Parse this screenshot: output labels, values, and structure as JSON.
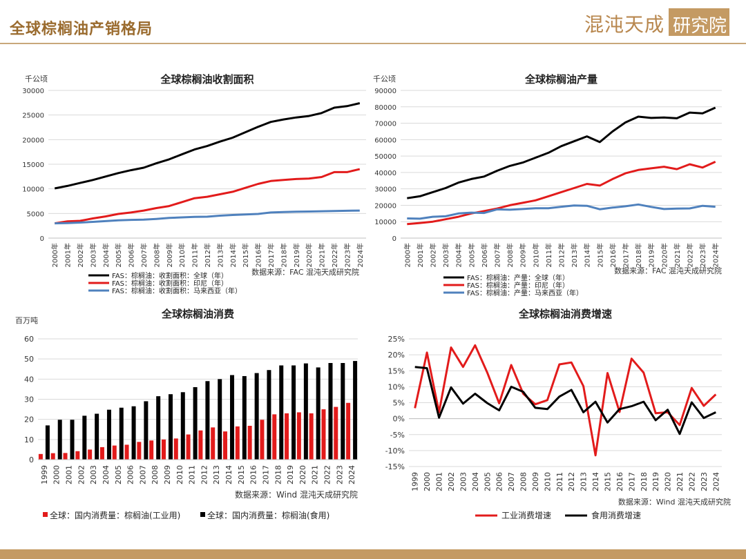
{
  "page": {
    "title": "全球棕榈油产销格局"
  },
  "logo": {
    "text_main": "混沌天成",
    "text_box": "研究院"
  },
  "colors": {
    "black": "#000000",
    "red": "#e21b1b",
    "blue": "#4f81bd",
    "brand": "#c49a63",
    "title_brown": "#9a6b2e"
  },
  "chart_data": [
    {
      "id": "area",
      "type": "line",
      "title": "全球棕榈油收割面积",
      "unit": "千公顷",
      "source": "数据来源：FAC  混沌天成研究院",
      "categories": [
        "2000年",
        "2001年",
        "2002年",
        "2003年",
        "2004年",
        "2005年",
        "2006年",
        "2007年",
        "2008年",
        "2009年",
        "2010年",
        "2011年",
        "2012年",
        "2013年",
        "2014年",
        "2015年",
        "2016年",
        "2017年",
        "2018年",
        "2019年",
        "2020年",
        "2021年",
        "2022年",
        "2023年",
        "2024年"
      ],
      "ylim": [
        0,
        30000
      ],
      "yticks": [
        0,
        5000,
        10000,
        15000,
        20000,
        25000,
        30000
      ],
      "legend_position": "bottom",
      "series": [
        {
          "name": "FAS：棕榈油：收割面积：全球（年）",
          "color": "#000000",
          "values": [
            10100,
            10600,
            11200,
            11800,
            12500,
            13200,
            13800,
            14300,
            15200,
            16000,
            17000,
            18000,
            18700,
            19600,
            20400,
            21500,
            22600,
            23600,
            24100,
            24500,
            24800,
            25400,
            26500,
            26800,
            27400
          ]
        },
        {
          "name": "FAS：棕榈油：收割面积：印尼（年）",
          "color": "#e21b1b",
          "values": [
            3000,
            3400,
            3500,
            4000,
            4400,
            4900,
            5200,
            5600,
            6100,
            6500,
            7300,
            8100,
            8400,
            8900,
            9400,
            10200,
            11000,
            11600,
            11800,
            12000,
            12100,
            12400,
            13400,
            13400,
            14000
          ]
        },
        {
          "name": "FAS：棕榈油：收割面积：马来西亚（年）",
          "color": "#4f81bd",
          "values": [
            3000,
            3050,
            3150,
            3300,
            3450,
            3600,
            3700,
            3750,
            3900,
            4100,
            4200,
            4300,
            4350,
            4550,
            4700,
            4800,
            4900,
            5200,
            5300,
            5350,
            5400,
            5450,
            5500,
            5550,
            5600
          ]
        }
      ]
    },
    {
      "id": "prod",
      "type": "line",
      "title": "全球棕榈油产量",
      "unit": "千公顷",
      "source": "数据来源：FAC  混沌天成研究院",
      "categories": [
        "2000年",
        "2001年",
        "2002年",
        "2003年",
        "2004年",
        "2005年",
        "2006年",
        "2007年",
        "2008年",
        "2009年",
        "2010年",
        "2011年",
        "2012年",
        "2013年",
        "2014年",
        "2015年",
        "2016年",
        "2017年",
        "2018年",
        "2019年",
        "2020年",
        "2021年",
        "2022年",
        "2023年",
        "2024年"
      ],
      "ylim": [
        0,
        90000
      ],
      "yticks": [
        0,
        10000,
        20000,
        30000,
        40000,
        50000,
        60000,
        70000,
        80000,
        90000
      ],
      "legend_position": "bottom",
      "series": [
        {
          "name": "FAS：棕榈油：产量：全球（年）",
          "color": "#000000",
          "values": [
            24300,
            25500,
            28000,
            30500,
            33800,
            36000,
            37500,
            41000,
            44000,
            46000,
            49000,
            52000,
            56000,
            59000,
            62000,
            58500,
            65000,
            70500,
            74000,
            73200,
            73500,
            73000,
            76500,
            76000,
            79500
          ]
        },
        {
          "name": "FAS：棕榈油：产量：印尼（年）",
          "color": "#e21b1b",
          "values": [
            8500,
            9200,
            10000,
            11500,
            13000,
            15000,
            16500,
            18000,
            20000,
            21500,
            23000,
            25500,
            28000,
            30500,
            33000,
            32000,
            36000,
            39500,
            41500,
            42500,
            43500,
            42000,
            45000,
            43000,
            46500
          ]
        },
        {
          "name": "FAS：棕榈油：产量：马来西亚（年）",
          "color": "#4f81bd",
          "values": [
            12000,
            11800,
            13000,
            13300,
            15000,
            15500,
            15300,
            17500,
            17300,
            17700,
            18200,
            18200,
            19100,
            19900,
            19700,
            17600,
            18600,
            19400,
            20500,
            19000,
            17700,
            18000,
            18100,
            19700,
            19100
          ]
        }
      ]
    },
    {
      "id": "cons",
      "type": "bar",
      "title": "全球棕榈油消费",
      "unit": "百万吨",
      "source": "数据来源：Wind  混沌天成研究院",
      "categories": [
        "1999",
        "2000",
        "2001",
        "2002",
        "2003",
        "2004",
        "2005",
        "2006",
        "2007",
        "2008",
        "2009",
        "2010",
        "2011",
        "2012",
        "2013",
        "2014",
        "2015",
        "2016",
        "2017",
        "2018",
        "2019",
        "2020",
        "2021",
        "2022",
        "2023",
        "2024"
      ],
      "ylim": [
        0,
        60
      ],
      "yticks": [
        0,
        10,
        20,
        30,
        40,
        50,
        60
      ],
      "legend_position": "bottom",
      "series": [
        {
          "name": "全球：国内消费量：棕榈油(工业用)",
          "color": "#e21b1b",
          "values": [
            2.8,
            3.2,
            3.3,
            4.2,
            5.0,
            6.2,
            7.0,
            7.4,
            8.8,
            9.5,
            10.0,
            10.5,
            12.5,
            14.5,
            16.0,
            14.0,
            16.5,
            16.8,
            19.8,
            22.5,
            23.0,
            23.5,
            23.0,
            25.0,
            26.2,
            28.2
          ]
        },
        {
          "name": "全球：国内消费量：棕榈油(食用)",
          "color": "#000000",
          "values": [
            17.0,
            19.8,
            19.8,
            21.8,
            22.8,
            24.8,
            25.8,
            26.5,
            29.0,
            31.5,
            32.5,
            33.5,
            36.0,
            39.0,
            40.0,
            42.0,
            41.5,
            43.0,
            44.5,
            46.8,
            46.8,
            47.8,
            45.8,
            48.0,
            48.0,
            49.0
          ]
        }
      ]
    },
    {
      "id": "growth",
      "type": "line",
      "title": "全球棕榈油消费增速",
      "source": "数据来源：Wind  混沌天成研究院",
      "categories": [
        "1999",
        "2000",
        "2001",
        "2002",
        "2003",
        "2004",
        "2005",
        "2006",
        "2007",
        "2008",
        "2009",
        "2010",
        "2011",
        "2012",
        "2013",
        "2014",
        "2015",
        "2016",
        "2017",
        "2018",
        "2019",
        "2020",
        "2021",
        "2022",
        "2023",
        "2024"
      ],
      "ylim": [
        -15,
        25
      ],
      "yticks": [
        -15,
        -10,
        -5,
        0,
        5,
        10,
        15,
        20,
        25
      ],
      "ytick_labels": [
        "-15%",
        "-10%",
        "-5%",
        "0%",
        "5%",
        "10%",
        "15%",
        "20%",
        "25%"
      ],
      "legend_position": "bottom",
      "series": [
        {
          "name": "工业消费增速",
          "color": "#e21b1b",
          "values": [
            3.3,
            20.7,
            2.0,
            22.3,
            16.2,
            23.0,
            14.5,
            4.8,
            16.8,
            7.8,
            4.5,
            5.8,
            17.0,
            17.6,
            10.2,
            -11.5,
            14.3,
            2.1,
            18.8,
            14.4,
            1.7,
            2.0,
            -2.0,
            9.6,
            4.0,
            7.6
          ]
        },
        {
          "name": "食用消费增速",
          "color": "#000000",
          "values": [
            16.2,
            15.8,
            0.3,
            9.8,
            4.7,
            7.8,
            4.9,
            2.6,
            10.0,
            8.4,
            3.4,
            3.0,
            6.9,
            9.0,
            2.0,
            5.3,
            -1.2,
            3.0,
            3.9,
            5.3,
            -0.5,
            2.8,
            -4.8,
            5.1,
            0.2,
            2.0
          ]
        }
      ]
    }
  ]
}
